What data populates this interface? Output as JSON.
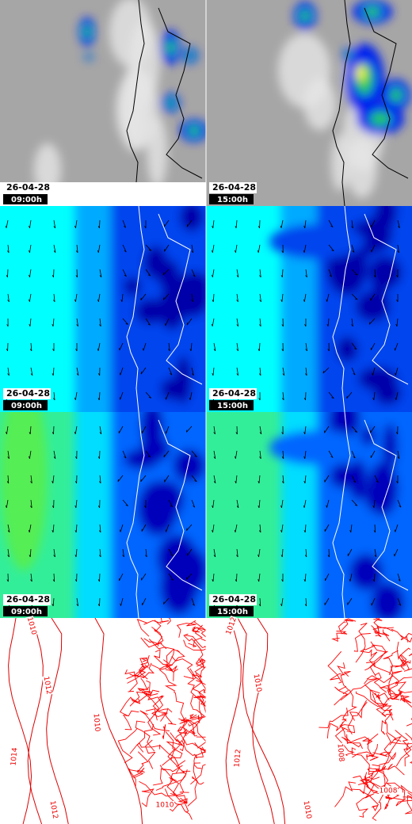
{
  "panels": [
    {
      "date": "26-04-28",
      "time": "09:00h"
    },
    {
      "date": "26-04-28",
      "time": "15:00h"
    },
    {
      "date": "26-04-28",
      "time": "09:00h"
    },
    {
      "date": "26-04-28",
      "time": "15:00h"
    },
    {
      "date": "26-04-28",
      "time": "09:00h"
    },
    {
      "date": "26-04-28",
      "time": "15:00h"
    }
  ],
  "pressure": [
    {
      "labels": [
        "1010",
        "1012",
        "1010",
        "1014",
        "1012",
        "1010"
      ]
    },
    {
      "labels": [
        "1012",
        "1010",
        "1012",
        "1008",
        "1010",
        "1008"
      ]
    }
  ]
}
